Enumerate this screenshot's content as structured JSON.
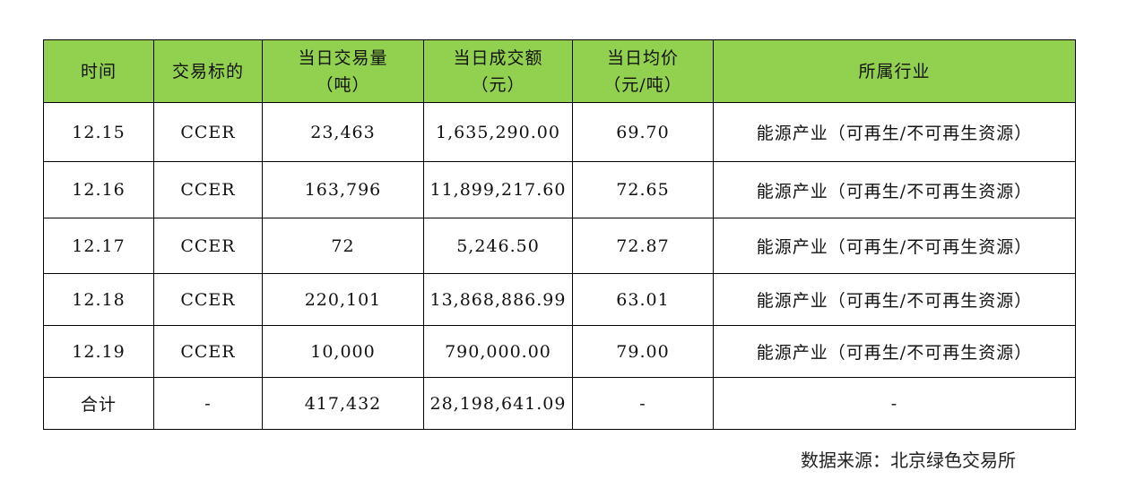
{
  "table": {
    "header_color": "#92d050",
    "headers": [
      {
        "line1": "时间",
        "line2": ""
      },
      {
        "line1": "交易标的",
        "line2": ""
      },
      {
        "line1": "当日交易量",
        "line2": "（吨）"
      },
      {
        "line1": "当日成交额",
        "line2": "（元）"
      },
      {
        "line1": "当日均价",
        "line2": "（元/吨）"
      },
      {
        "line1": "所属行业",
        "line2": ""
      }
    ],
    "rows": [
      [
        "12.15",
        "CCER",
        "23,463",
        "1,635,290.00",
        "69.70",
        "能源产业（可再生/不可再生资源）"
      ],
      [
        "12.16",
        "CCER",
        "163,796",
        "11,899,217.60",
        "72.65",
        "能源产业（可再生/不可再生资源）"
      ],
      [
        "12.17",
        "CCER",
        "72",
        "5,246.50",
        "72.87",
        "能源产业（可再生/不可再生资源）"
      ],
      [
        "12.18",
        "CCER",
        "220,101",
        "13,868,886.99",
        "63.01",
        "能源产业（可再生/不可再生资源）"
      ],
      [
        "12.19",
        "CCER",
        "10,000",
        "790,000.00",
        "79.00",
        "能源产业（可再生/不可再生资源）"
      ],
      [
        "合计",
        "-",
        "417,432",
        "28,198,641.09",
        "-",
        "-"
      ]
    ]
  },
  "source": "数据来源：北京绿色交易所"
}
